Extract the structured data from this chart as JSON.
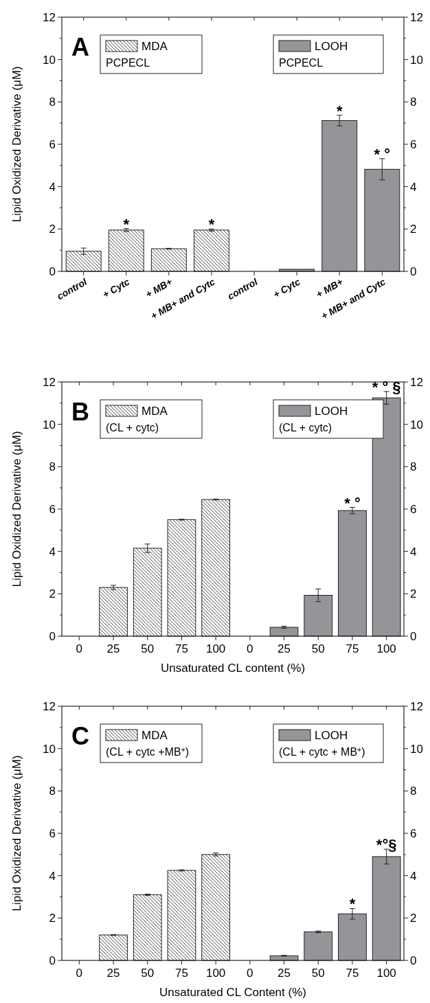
{
  "chart_data": [
    {
      "type": "bar",
      "ylabel": "Lipid Oxidized Derivative (μM)",
      "categories": [
        "control",
        "+ Cytc",
        "+ MB+",
        "+ MB+ and Cytc",
        "control",
        "+ Cytc",
        "+ MB+",
        "+ MB+ and Cytc"
      ],
      "series": [
        {
          "name": "MDA",
          "color": "#ffffff",
          "values": [
            0.95,
            1.95,
            1.07,
            1.95,
            null,
            null,
            null,
            null
          ],
          "errors": [
            0.15,
            0.07,
            0.02,
            0.05,
            null,
            null,
            null,
            null
          ],
          "value_labels": [
            null,
            "*",
            null,
            "*",
            null,
            null,
            null,
            null
          ]
        },
        {
          "name": "LOOH",
          "color": "#939598",
          "values": [
            null,
            null,
            null,
            null,
            0,
            0.1,
            7.12,
            4.82
          ],
          "errors": [
            null,
            null,
            null,
            null,
            null,
            null,
            0.25,
            0.5
          ],
          "value_labels": [
            null,
            null,
            null,
            null,
            null,
            null,
            "*",
            "* °"
          ]
        }
      ],
      "ylim": [
        0,
        12
      ],
      "yticks": [
        0,
        {
          "value": 1,
          "label": null
        },
        2,
        {
          "value": 3,
          "label": null
        },
        4,
        {
          "value": 5,
          "label": null
        },
        6,
        {
          "value": 7,
          "label": null
        },
        8,
        {
          "value": 9,
          "label": null
        },
        10,
        {
          "value": 11,
          "label": null
        },
        12
      ],
      "y2lim": [
        0,
        12
      ],
      "y2ticks": [
        0,
        {
          "value": 1,
          "label": null
        },
        2,
        {
          "value": 3,
          "label": null
        },
        4,
        {
          "value": 5,
          "label": null
        },
        6,
        {
          "value": 7,
          "label": null
        },
        8,
        {
          "value": 9,
          "label": null
        },
        10,
        {
          "value": 11,
          "label": null
        },
        12
      ],
      "legend": "top",
      "grid": false,
      "annotations": [
        "A",
        "PCPECL",
        "PCPECL"
      ]
    },
    {
      "type": "bar",
      "ylabel": "Lipid Oxidized Derivative (μM)",
      "xlabel": "Unsaturated CL content (%)",
      "categories": [
        "0",
        "25",
        "50",
        "75",
        "100",
        "0",
        "25",
        "50",
        "75",
        "100"
      ],
      "series": [
        {
          "name": "MDA",
          "color": "#ffffff",
          "values": [
            0,
            2.3,
            4.15,
            5.5,
            6.45,
            null,
            null,
            null,
            null,
            null
          ],
          "errors": [
            null,
            0.1,
            0.2,
            0.02,
            0.02,
            null,
            null,
            null,
            null,
            null
          ]
        },
        {
          "name": "LOOH",
          "color": "#939598",
          "values": [
            null,
            null,
            null,
            null,
            null,
            0,
            0.42,
            1.93,
            5.93,
            11.25
          ],
          "errors": [
            null,
            null,
            null,
            null,
            null,
            null,
            0.05,
            0.3,
            0.15,
            0.3
          ],
          "value_labels": [
            null,
            null,
            null,
            null,
            null,
            null,
            null,
            null,
            "* °",
            "* ° §"
          ]
        }
      ],
      "ylim": [
        0,
        12
      ],
      "yticks": [
        0,
        {
          "value": 1,
          "label": null
        },
        2,
        {
          "value": 3,
          "label": null
        },
        4,
        {
          "value": 5,
          "label": null
        },
        6,
        {
          "value": 7,
          "label": null
        },
        8,
        {
          "value": 9,
          "label": null
        },
        10,
        {
          "value": 11,
          "label": null
        },
        12
      ],
      "y2lim": [
        0,
        12
      ],
      "y2ticks": [
        0,
        {
          "value": 1,
          "label": null
        },
        2,
        {
          "value": 3,
          "label": null
        },
        4,
        {
          "value": 5,
          "label": null
        },
        6,
        {
          "value": 7,
          "label": null
        },
        8,
        {
          "value": 9,
          "label": null
        },
        10,
        {
          "value": 11,
          "label": null
        },
        12
      ],
      "legend": "top",
      "grid": false,
      "annotations": [
        "B",
        "(CL + cytc)",
        "(CL + cytc)"
      ]
    },
    {
      "type": "bar",
      "ylabel": "Lipid Oxidized Derivative (μM)",
      "xlabel": "Unsaturated CL Content (%)",
      "categories": [
        "0",
        "25",
        "50",
        "75",
        "100",
        "0",
        "25",
        "50",
        "75",
        "100"
      ],
      "series": [
        {
          "name": "MDA",
          "color": "#ffffff",
          "values": [
            0,
            1.2,
            3.1,
            4.25,
            5.0,
            null,
            null,
            null,
            null,
            null
          ],
          "errors": [
            null,
            0.02,
            0.03,
            0.03,
            0.07,
            null,
            null,
            null,
            null,
            null
          ]
        },
        {
          "name": "LOOH",
          "color": "#939598",
          "values": [
            null,
            null,
            null,
            null,
            null,
            0,
            0.22,
            1.35,
            2.2,
            4.9
          ],
          "errors": [
            null,
            null,
            null,
            null,
            null,
            null,
            0.02,
            0.04,
            0.25,
            0.35
          ],
          "value_labels": [
            null,
            null,
            null,
            null,
            null,
            null,
            null,
            null,
            "*",
            "*°§"
          ]
        }
      ],
      "ylim": [
        0,
        12
      ],
      "yticks": [
        0,
        {
          "value": 1,
          "label": null
        },
        2,
        {
          "value": 3,
          "label": null
        },
        4,
        {
          "value": 5,
          "label": null
        },
        6,
        {
          "value": 7,
          "label": null
        },
        8,
        {
          "value": 9,
          "label": null
        },
        10,
        {
          "value": 11,
          "label": null
        },
        12
      ],
      "y2lim": [
        0,
        12
      ],
      "y2ticks": [
        0,
        {
          "value": 1,
          "label": null
        },
        2,
        {
          "value": 3,
          "label": null
        },
        4,
        {
          "value": 5,
          "label": null
        },
        6,
        {
          "value": 7,
          "label": null
        },
        8,
        {
          "value": 9,
          "label": null
        },
        10,
        {
          "value": 11,
          "label": null
        },
        12
      ],
      "legend": "top",
      "grid": false,
      "annotations": [
        "C",
        "(CL + cytc +MB$^{+}$)",
        "(CL + cytc + MB$^{+}$)"
      ]
    }
  ]
}
